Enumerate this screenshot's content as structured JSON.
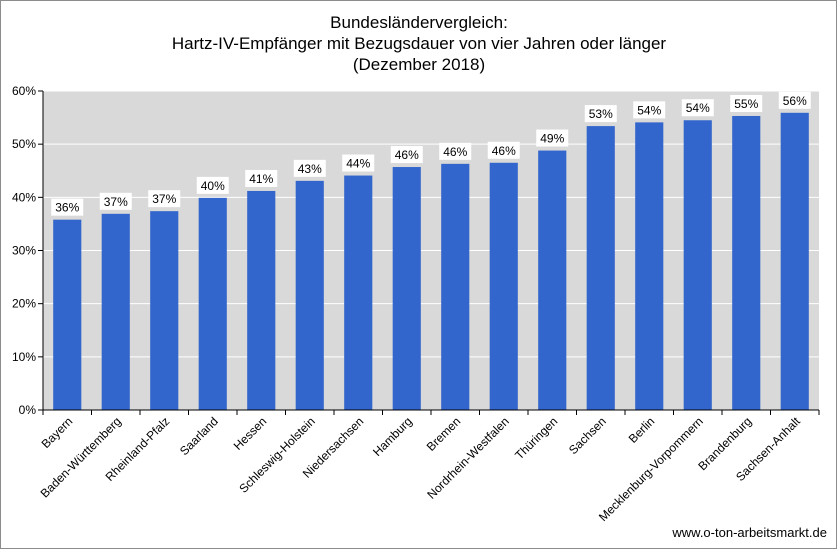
{
  "chart_data": {
    "type": "bar",
    "title_lines": [
      "Bundesländervergleich:",
      "Hartz-IV-Empfänger mit Bezugsdauer von vier Jahren oder länger",
      "(Dezember 2018)"
    ],
    "categories": [
      "Bayern",
      "Baden-Württemberg",
      "Rheinland-Pfalz",
      "Saarland",
      "Hessen",
      "Schleswig-Holstein",
      "Niedersachsen",
      "Hamburg",
      "Bremen",
      "Nordrhein-Westfalen",
      "Thüringen",
      "Sachsen",
      "Berlin",
      "Mecklenburg-Vorpommern",
      "Brandenburg",
      "Sachsen-Anhalt"
    ],
    "values": [
      35.8,
      36.9,
      37.4,
      39.9,
      41.2,
      43.1,
      44.1,
      45.7,
      46.3,
      46.5,
      48.8,
      53.4,
      54.1,
      54.5,
      55.3,
      55.9
    ],
    "data_labels": [
      "36%",
      "37%",
      "37%",
      "40%",
      "41%",
      "43%",
      "44%",
      "46%",
      "46%",
      "46%",
      "49%",
      "53%",
      "54%",
      "54%",
      "55%",
      "56%"
    ],
    "y_ticks": [
      0,
      10,
      20,
      30,
      40,
      50,
      60
    ],
    "y_tick_labels": [
      "0%",
      "10%",
      "20%",
      "30%",
      "40%",
      "50%",
      "60%"
    ],
    "ylim": [
      0,
      60
    ],
    "xlabel": "",
    "ylabel": "",
    "grid": true,
    "legend": "none"
  },
  "source": "www.o-ton-arbeitsmarkt.de",
  "colors": {
    "bar": "#3366cc",
    "plot_bg": "#d9d9d9",
    "grid": "#ffffff",
    "axis": "#000000"
  }
}
